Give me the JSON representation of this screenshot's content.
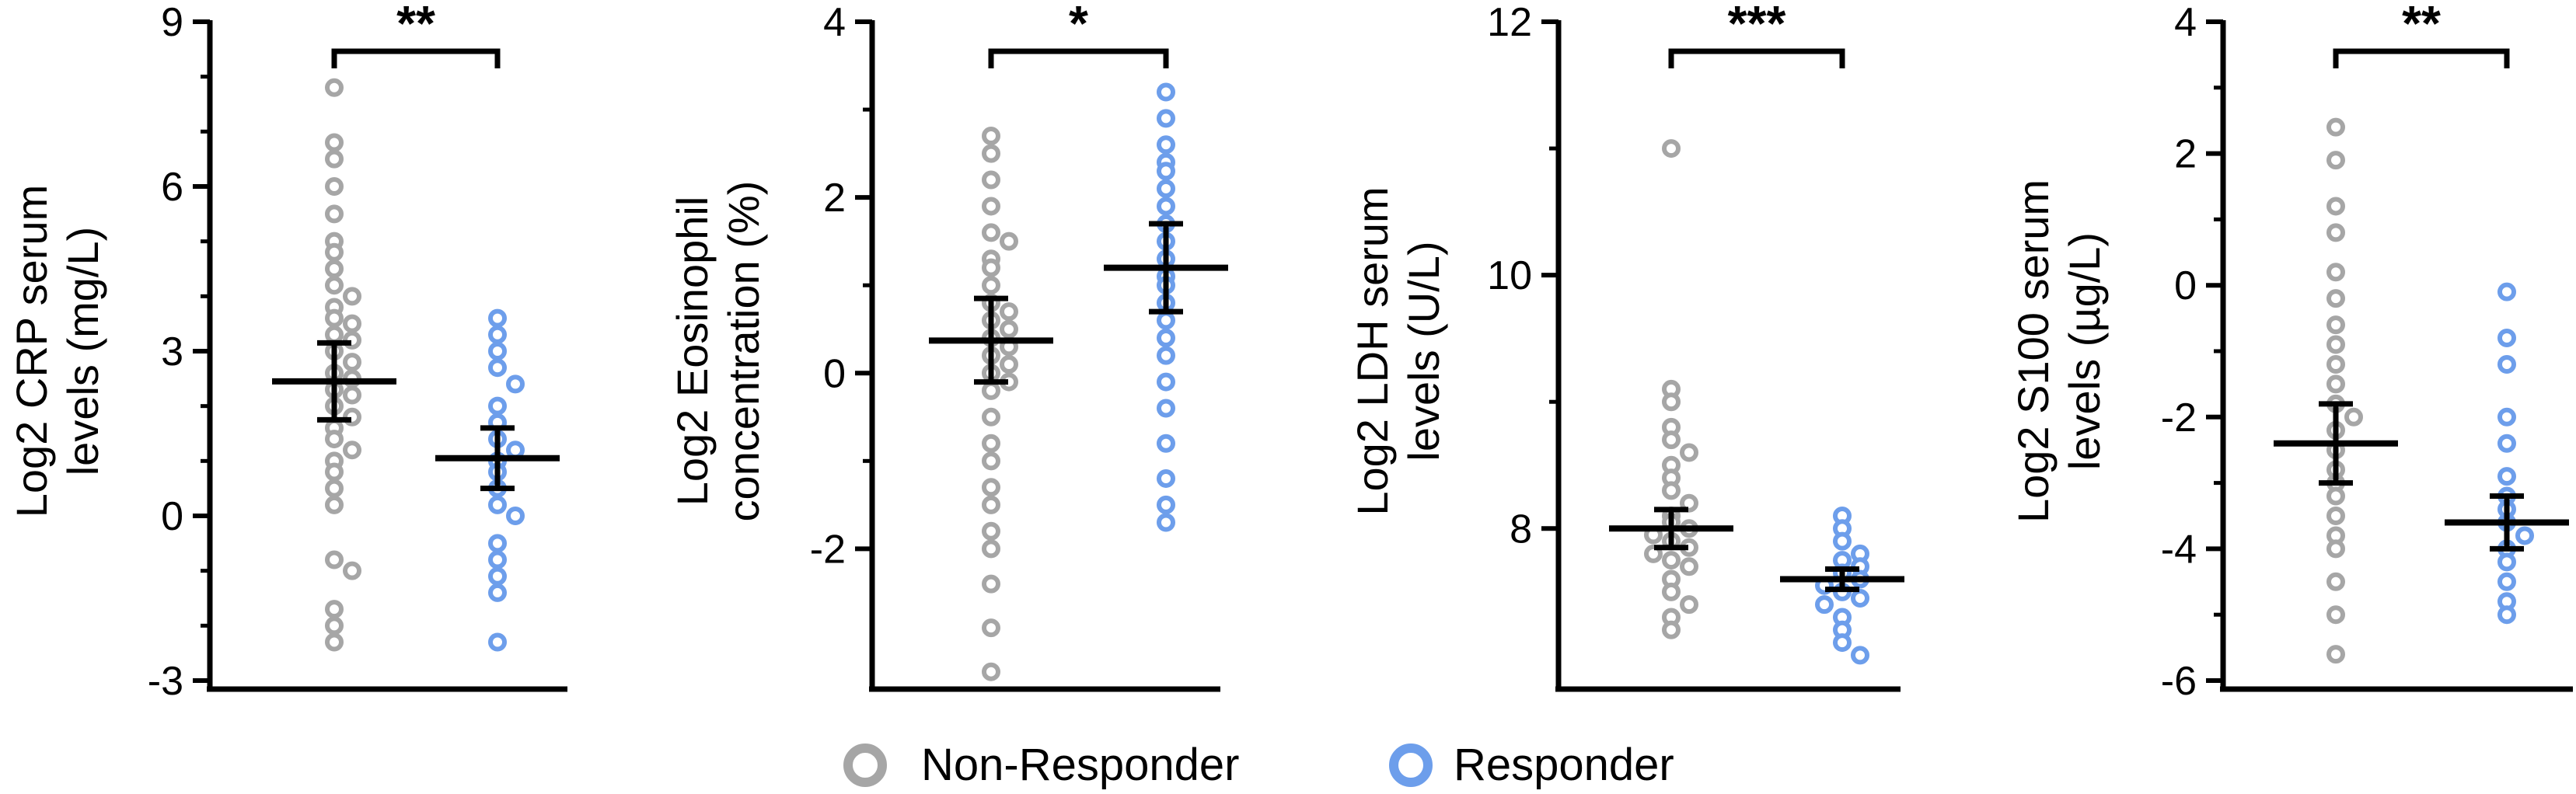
{
  "chart_data": [
    {
      "type": "scatter",
      "ylabel": [
        "Log2 CRP serum",
        "levels  (mg/L)"
      ],
      "ylim": [
        -3,
        9
      ],
      "yticks": [
        -3,
        0,
        3,
        6,
        9
      ],
      "significance": "**",
      "series": [
        {
          "name": "Non-Responder",
          "points": [
            7.8,
            6.8,
            6.5,
            6.0,
            5.5,
            5.0,
            4.8,
            4.5,
            4.2,
            4.0,
            3.8,
            3.6,
            3.5,
            3.3,
            3.2,
            3.0,
            2.8,
            2.6,
            2.5,
            2.3,
            2.2,
            2.0,
            1.8,
            1.6,
            1.4,
            1.2,
            1.0,
            0.8,
            0.5,
            0.2,
            -0.8,
            -1.0,
            -1.7,
            -2.0,
            -2.3
          ],
          "mean": 2.45,
          "ci": [
            1.75,
            3.15
          ]
        },
        {
          "name": "Responder",
          "points": [
            3.6,
            3.3,
            3.0,
            2.7,
            2.4,
            2.0,
            1.7,
            1.4,
            1.2,
            1.0,
            0.8,
            0.5,
            0.2,
            0.0,
            -0.5,
            -0.8,
            -1.1,
            -1.4,
            -2.3
          ],
          "mean": 1.05,
          "ci": [
            0.5,
            1.6
          ]
        }
      ]
    },
    {
      "type": "scatter",
      "ylabel": [
        "Log2 Eosinophil",
        "concentration (%)"
      ],
      "ylim": [
        -4,
        4
      ],
      "yticks": [
        -2,
        0,
        2,
        4
      ],
      "significance": "*",
      "series": [
        {
          "name": "Non-Responder",
          "points": [
            2.7,
            2.5,
            2.2,
            1.9,
            1.6,
            1.5,
            1.3,
            1.2,
            1.0,
            0.8,
            0.7,
            0.6,
            0.5,
            0.4,
            0.3,
            0.2,
            0.1,
            0.0,
            -0.1,
            -0.2,
            -0.5,
            -0.8,
            -1.0,
            -1.3,
            -1.5,
            -1.8,
            -2.0,
            -2.4,
            -2.9,
            -3.4
          ],
          "mean": 0.37,
          "ci": [
            -0.1,
            0.85
          ]
        },
        {
          "name": "Responder",
          "points": [
            3.2,
            2.9,
            2.6,
            2.4,
            2.3,
            2.1,
            1.9,
            1.7,
            1.5,
            1.3,
            1.1,
            1.0,
            0.8,
            0.6,
            0.4,
            0.2,
            -0.1,
            -0.4,
            -0.8,
            -1.2,
            -1.5,
            -1.7
          ],
          "mean": 1.2,
          "ci": [
            0.7,
            1.7
          ]
        }
      ]
    },
    {
      "type": "scatter",
      "ylabel": [
        "Log2 LDH serum",
        "levels (U/L)"
      ],
      "ylim": [
        6.8,
        12
      ],
      "yticks": [
        8,
        10,
        12
      ],
      "significance": "***",
      "series": [
        {
          "name": "Non-Responder",
          "points": [
            11.0,
            9.1,
            9.0,
            8.8,
            8.7,
            8.6,
            8.5,
            8.4,
            8.3,
            8.2,
            8.1,
            8.05,
            8.0,
            7.95,
            7.9,
            7.85,
            7.8,
            7.75,
            7.7,
            7.6,
            7.5,
            7.4,
            7.3,
            7.2
          ],
          "mean": 8.0,
          "ci": [
            7.85,
            8.15
          ]
        },
        {
          "name": "Responder",
          "points": [
            8.1,
            8.0,
            7.9,
            7.8,
            7.75,
            7.7,
            7.65,
            7.6,
            7.55,
            7.5,
            7.45,
            7.4,
            7.3,
            7.2,
            7.1,
            7.0
          ],
          "mean": 7.6,
          "ci": [
            7.52,
            7.68
          ]
        }
      ]
    },
    {
      "type": "scatter",
      "ylabel": [
        "Log2 S100 serum",
        "levels (µg/L)"
      ],
      "ylim": [
        -6,
        4
      ],
      "yticks": [
        -6,
        -4,
        -2,
        0,
        2,
        4
      ],
      "significance": "**",
      "series": [
        {
          "name": "Non-Responder",
          "points": [
            2.4,
            1.9,
            1.2,
            0.8,
            0.2,
            -0.2,
            -0.6,
            -0.9,
            -1.2,
            -1.5,
            -1.8,
            -2.0,
            -2.2,
            -2.5,
            -2.8,
            -3.0,
            -3.2,
            -3.5,
            -3.8,
            -4.0,
            -4.5,
            -5.0,
            -5.6
          ],
          "mean": -2.4,
          "ci": [
            -3.0,
            -1.8
          ]
        },
        {
          "name": "Responder",
          "points": [
            -0.1,
            -0.8,
            -1.2,
            -2.0,
            -2.4,
            -2.9,
            -3.2,
            -3.4,
            -3.6,
            -3.8,
            -4.0,
            -4.2,
            -4.5,
            -4.8,
            -5.0
          ],
          "mean": -3.6,
          "ci": [
            -4.0,
            -3.2
          ]
        }
      ]
    }
  ],
  "legend": {
    "items": [
      {
        "label": "Non-Responder",
        "color": "#a6a6a6"
      },
      {
        "label": "Responder",
        "color": "#6d9eeb"
      }
    ],
    "placement": "bottom"
  },
  "colors": {
    "nonresponder": "#a6a6a6",
    "responder": "#6d9eeb",
    "axis": "#000000"
  }
}
